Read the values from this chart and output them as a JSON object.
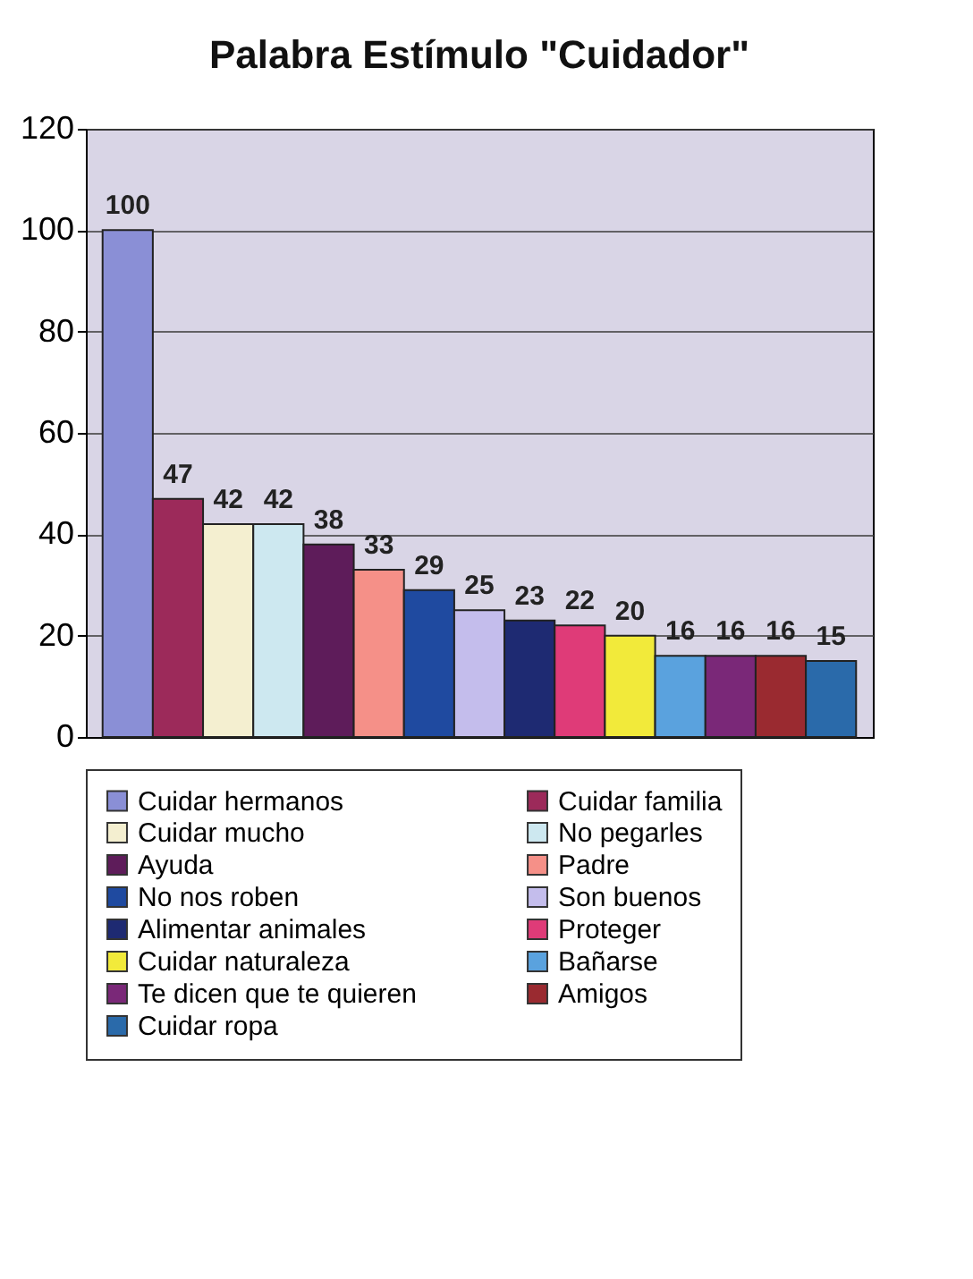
{
  "chart_data": {
    "type": "bar",
    "title": "Palabra Estímulo \"Cuidador\"",
    "categories": [
      null
    ],
    "series": [
      {
        "name": "Cuidar hermanos",
        "color": "#8a8fd6",
        "values": [
          100
        ]
      },
      {
        "name": "Cuidar familia",
        "color": "#9c2a5a",
        "values": [
          47
        ]
      },
      {
        "name": "Cuidar mucho",
        "color": "#f4efd0",
        "values": [
          42
        ]
      },
      {
        "name": "No pegarles",
        "color": "#cde8f0",
        "values": [
          42
        ]
      },
      {
        "name": "Ayuda",
        "color": "#5e1c5a",
        "values": [
          38
        ]
      },
      {
        "name": "Padre",
        "color": "#f59088",
        "values": [
          33
        ]
      },
      {
        "name": "No nos roben",
        "color": "#1f4aa0",
        "values": [
          29
        ]
      },
      {
        "name": "Son buenos",
        "color": "#c4bdec",
        "values": [
          25
        ]
      },
      {
        "name": "Alimentar animales",
        "color": "#1e2a72",
        "values": [
          23
        ]
      },
      {
        "name": "Proteger",
        "color": "#df3b78",
        "values": [
          22
        ]
      },
      {
        "name": "Cuidar naturaleza",
        "color": "#f2ea3a",
        "values": [
          20
        ]
      },
      {
        "name": "Bañarse",
        "color": "#5aa2de",
        "values": [
          16
        ]
      },
      {
        "name": "Te dicen que te quieren",
        "color": "#7a2878",
        "values": [
          16
        ]
      },
      {
        "name": "Amigos",
        "color": "#9a2a30",
        "values": [
          16
        ]
      },
      {
        "name": "Cuidar ropa",
        "color": "#2a6aaa",
        "values": [
          15
        ]
      }
    ],
    "ylim": [
      0,
      120
    ],
    "yticks": [
      0,
      20,
      40,
      60,
      80,
      100,
      120
    ],
    "grid": "y",
    "data_labels": true,
    "legend": "bottom",
    "tick_labels": "y"
  }
}
